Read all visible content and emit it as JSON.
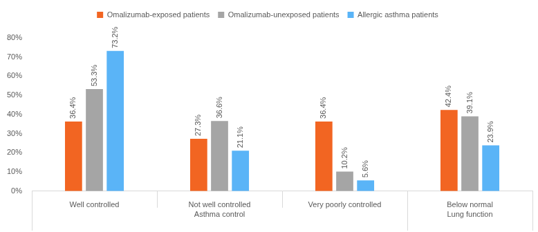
{
  "chart_data": {
    "type": "bar",
    "categories": [
      "Well controlled",
      "Not well controlled",
      "Very poorly controlled",
      "Below normal"
    ],
    "category_groups": [
      {
        "name": "Asthma control",
        "categories": [
          "Well controlled",
          "Not well controlled",
          "Very poorly controlled"
        ]
      },
      {
        "name": "Lung function",
        "categories": [
          "Below normal"
        ]
      }
    ],
    "series": [
      {
        "name": "Omalizumab-exposed patients",
        "color": "#f26522",
        "values": [
          36.4,
          27.3,
          36.4,
          42.4
        ],
        "value_labels": [
          "36.4%",
          "27.3%",
          "36.4%",
          "42.4%"
        ]
      },
      {
        "name": "Omalizumab-unexposed patients",
        "color": "#a5a5a5",
        "values": [
          53.3,
          36.6,
          10.2,
          39.1
        ],
        "value_labels": [
          "53.3%",
          "36.6%",
          "10.2%",
          "39.1%"
        ]
      },
      {
        "name": "Allergic asthma patients",
        "color": "#5ab4f7",
        "values": [
          73.2,
          21.1,
          5.6,
          23.9
        ],
        "value_labels": [
          "73.2%",
          "21.1%",
          "5.6%",
          "23.9%"
        ]
      }
    ],
    "ylim": [
      0,
      80
    ],
    "yticks": [
      {
        "value": 0,
        "label": "0%"
      },
      {
        "value": 10,
        "label": "10%"
      },
      {
        "value": 20,
        "label": "20%"
      },
      {
        "value": 30,
        "label": "30%"
      },
      {
        "value": 40,
        "label": "40%"
      },
      {
        "value": 50,
        "label": "50%"
      },
      {
        "value": 60,
        "label": "60%"
      },
      {
        "value": 70,
        "label": "70%"
      },
      {
        "value": 80,
        "label": "80%"
      }
    ],
    "grid": false,
    "legend": "top",
    "data_labels": true
  }
}
